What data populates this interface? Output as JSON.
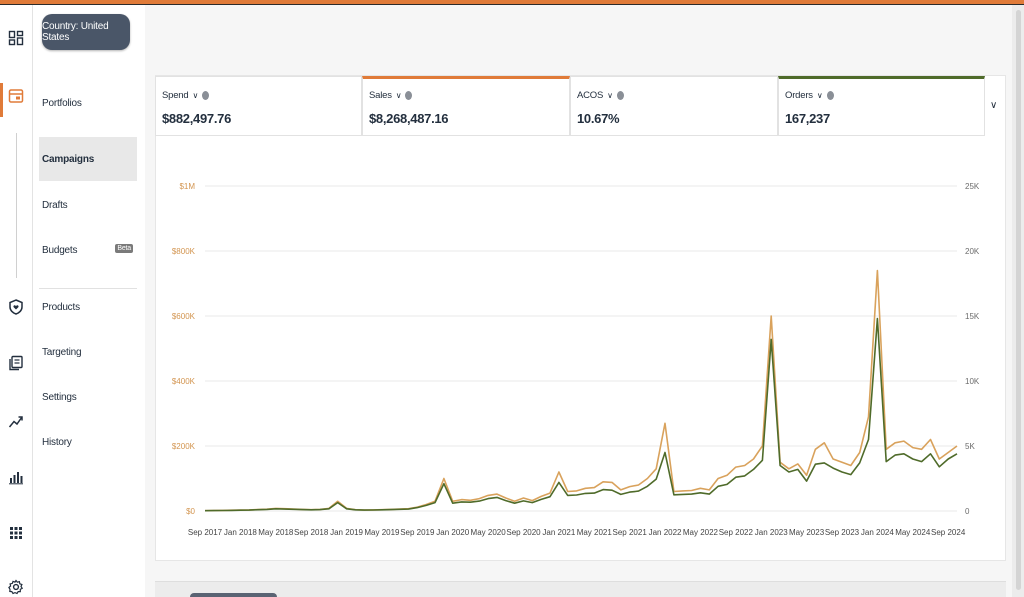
{
  "country": "Country: United States",
  "nav": {
    "portfolios": "Portfolios",
    "campaigns": "Campaigns",
    "drafts": "Drafts",
    "budgets": "Budgets",
    "beta": "Beta",
    "products": "Products",
    "targeting": "Targeting",
    "settings": "Settings",
    "history": "History"
  },
  "metrics": [
    {
      "label": "Spend",
      "value": "$882,497.76",
      "selected": false
    },
    {
      "label": "Sales",
      "value": "$8,268,487.16",
      "selected": true,
      "color": "#e07b39"
    },
    {
      "label": "ACOS",
      "value": "10.67%",
      "selected": false
    },
    {
      "label": "Orders",
      "value": "167,237",
      "selected": true,
      "color": "#4f6b2a"
    }
  ],
  "icons": [
    "dashboard-icon",
    "campaign-icon",
    "shield-icon",
    "reports-icon",
    "trend-icon",
    "bar-chart-icon",
    "apps-icon",
    "settings-icon"
  ],
  "chart_data": {
    "type": "line",
    "x": [
      "Sep 2017",
      "Oct 2017",
      "Nov 2017",
      "Dec 2017",
      "Jan 2018",
      "Feb 2018",
      "Mar 2018",
      "Apr 2018",
      "May 2018",
      "Jun 2018",
      "Jul 2018",
      "Aug 2018",
      "Sep 2018",
      "Oct 2018",
      "Nov 2018",
      "Dec 2018",
      "Jan 2019",
      "Feb 2019",
      "Mar 2019",
      "Apr 2019",
      "May 2019",
      "Jun 2019",
      "Jul 2019",
      "Aug 2019",
      "Sep 2019",
      "Oct 2019",
      "Nov 2019",
      "Dec 2019",
      "Jan 2020",
      "Feb 2020",
      "Mar 2020",
      "Apr 2020",
      "May 2020",
      "Jun 2020",
      "Jul 2020",
      "Aug 2020",
      "Sep 2020",
      "Oct 2020",
      "Nov 2020",
      "Dec 2020",
      "Jan 2021",
      "Feb 2021",
      "Mar 2021",
      "Apr 2021",
      "May 2021",
      "Jun 2021",
      "Jul 2021",
      "Aug 2021",
      "Sep 2021",
      "Oct 2021",
      "Nov 2021",
      "Dec 2021",
      "Jan 2022",
      "Feb 2022",
      "Mar 2022",
      "Apr 2022",
      "May 2022",
      "Jun 2022",
      "Jul 2022",
      "Aug 2022",
      "Sep 2022",
      "Oct 2022",
      "Nov 2022",
      "Dec 2022",
      "Jan 2023",
      "Feb 2023",
      "Mar 2023",
      "Apr 2023",
      "May 2023",
      "Jun 2023",
      "Jul 2023",
      "Aug 2023",
      "Sep 2023",
      "Oct 2023",
      "Nov 2023",
      "Dec 2023",
      "Jan 2024",
      "Feb 2024",
      "Mar 2024",
      "Apr 2024",
      "May 2024",
      "Jun 2024",
      "Jul 2024",
      "Aug 2024",
      "Sep 2024",
      "Oct 2024"
    ],
    "x_tick_labels": [
      "Sep 2017",
      "Jan 2018",
      "May 2018",
      "Sep 2018",
      "Jan 2019",
      "May 2019",
      "Sep 2019",
      "Jan 2020",
      "May 2020",
      "Sep 2020",
      "Jan 2021",
      "May 2021",
      "Sep 2021",
      "Jan 2022",
      "May 2022",
      "Sep 2022",
      "Jan 2023",
      "May 2023",
      "Sep 2023",
      "Jan 2024",
      "May 2024",
      "Sep 2024"
    ],
    "y_left_ticks": [
      "$0",
      "$200K",
      "$400K",
      "$600K",
      "$800K",
      "$1M"
    ],
    "y_right_ticks": [
      "0",
      "5K",
      "10K",
      "15K",
      "20K",
      "25K"
    ],
    "ylim_left": [
      0,
      1000000
    ],
    "ylim_right": [
      0,
      25000
    ],
    "grid": true,
    "series": [
      {
        "name": "Sales",
        "axis": "left",
        "color": "#d9a25c",
        "values": [
          1000,
          1500,
          2000,
          2500,
          3000,
          3500,
          4500,
          5500,
          8000,
          7000,
          6000,
          5000,
          4000,
          5000,
          8000,
          30000,
          8000,
          4000,
          3000,
          3500,
          4000,
          5000,
          6000,
          7000,
          12000,
          20000,
          30000,
          100000,
          30000,
          35000,
          33000,
          38000,
          48000,
          52000,
          40000,
          30000,
          40000,
          32000,
          45000,
          55000,
          120000,
          60000,
          62000,
          70000,
          72000,
          90000,
          88000,
          65000,
          75000,
          80000,
          100000,
          130000,
          270000,
          60000,
          62000,
          63000,
          70000,
          65000,
          100000,
          110000,
          135000,
          140000,
          160000,
          200000,
          600000,
          150000,
          130000,
          145000,
          110000,
          190000,
          210000,
          160000,
          150000,
          140000,
          180000,
          290000,
          740000,
          190000,
          210000,
          215000,
          195000,
          190000,
          220000,
          160000,
          180000,
          200000
        ]
      },
      {
        "name": "Orders",
        "axis": "right",
        "color": "#4f6b2a",
        "values": [
          20,
          30,
          40,
          50,
          60,
          70,
          100,
          120,
          170,
          150,
          130,
          110,
          90,
          110,
          170,
          650,
          170,
          90,
          70,
          80,
          90,
          110,
          130,
          150,
          260,
          430,
          650,
          2100,
          600,
          700,
          680,
          760,
          950,
          1050,
          800,
          600,
          780,
          650,
          890,
          1100,
          2200,
          1200,
          1230,
          1350,
          1380,
          1650,
          1600,
          1280,
          1450,
          1530,
          1900,
          2450,
          4500,
          1250,
          1280,
          1300,
          1400,
          1300,
          1900,
          2050,
          2600,
          2700,
          3200,
          3900,
          13200,
          3500,
          3000,
          3200,
          2300,
          3600,
          3700,
          3300,
          3000,
          2800,
          3700,
          5500,
          14800,
          3800,
          4300,
          4400,
          4000,
          3800,
          4400,
          3400,
          4000,
          4400
        ]
      }
    ]
  }
}
